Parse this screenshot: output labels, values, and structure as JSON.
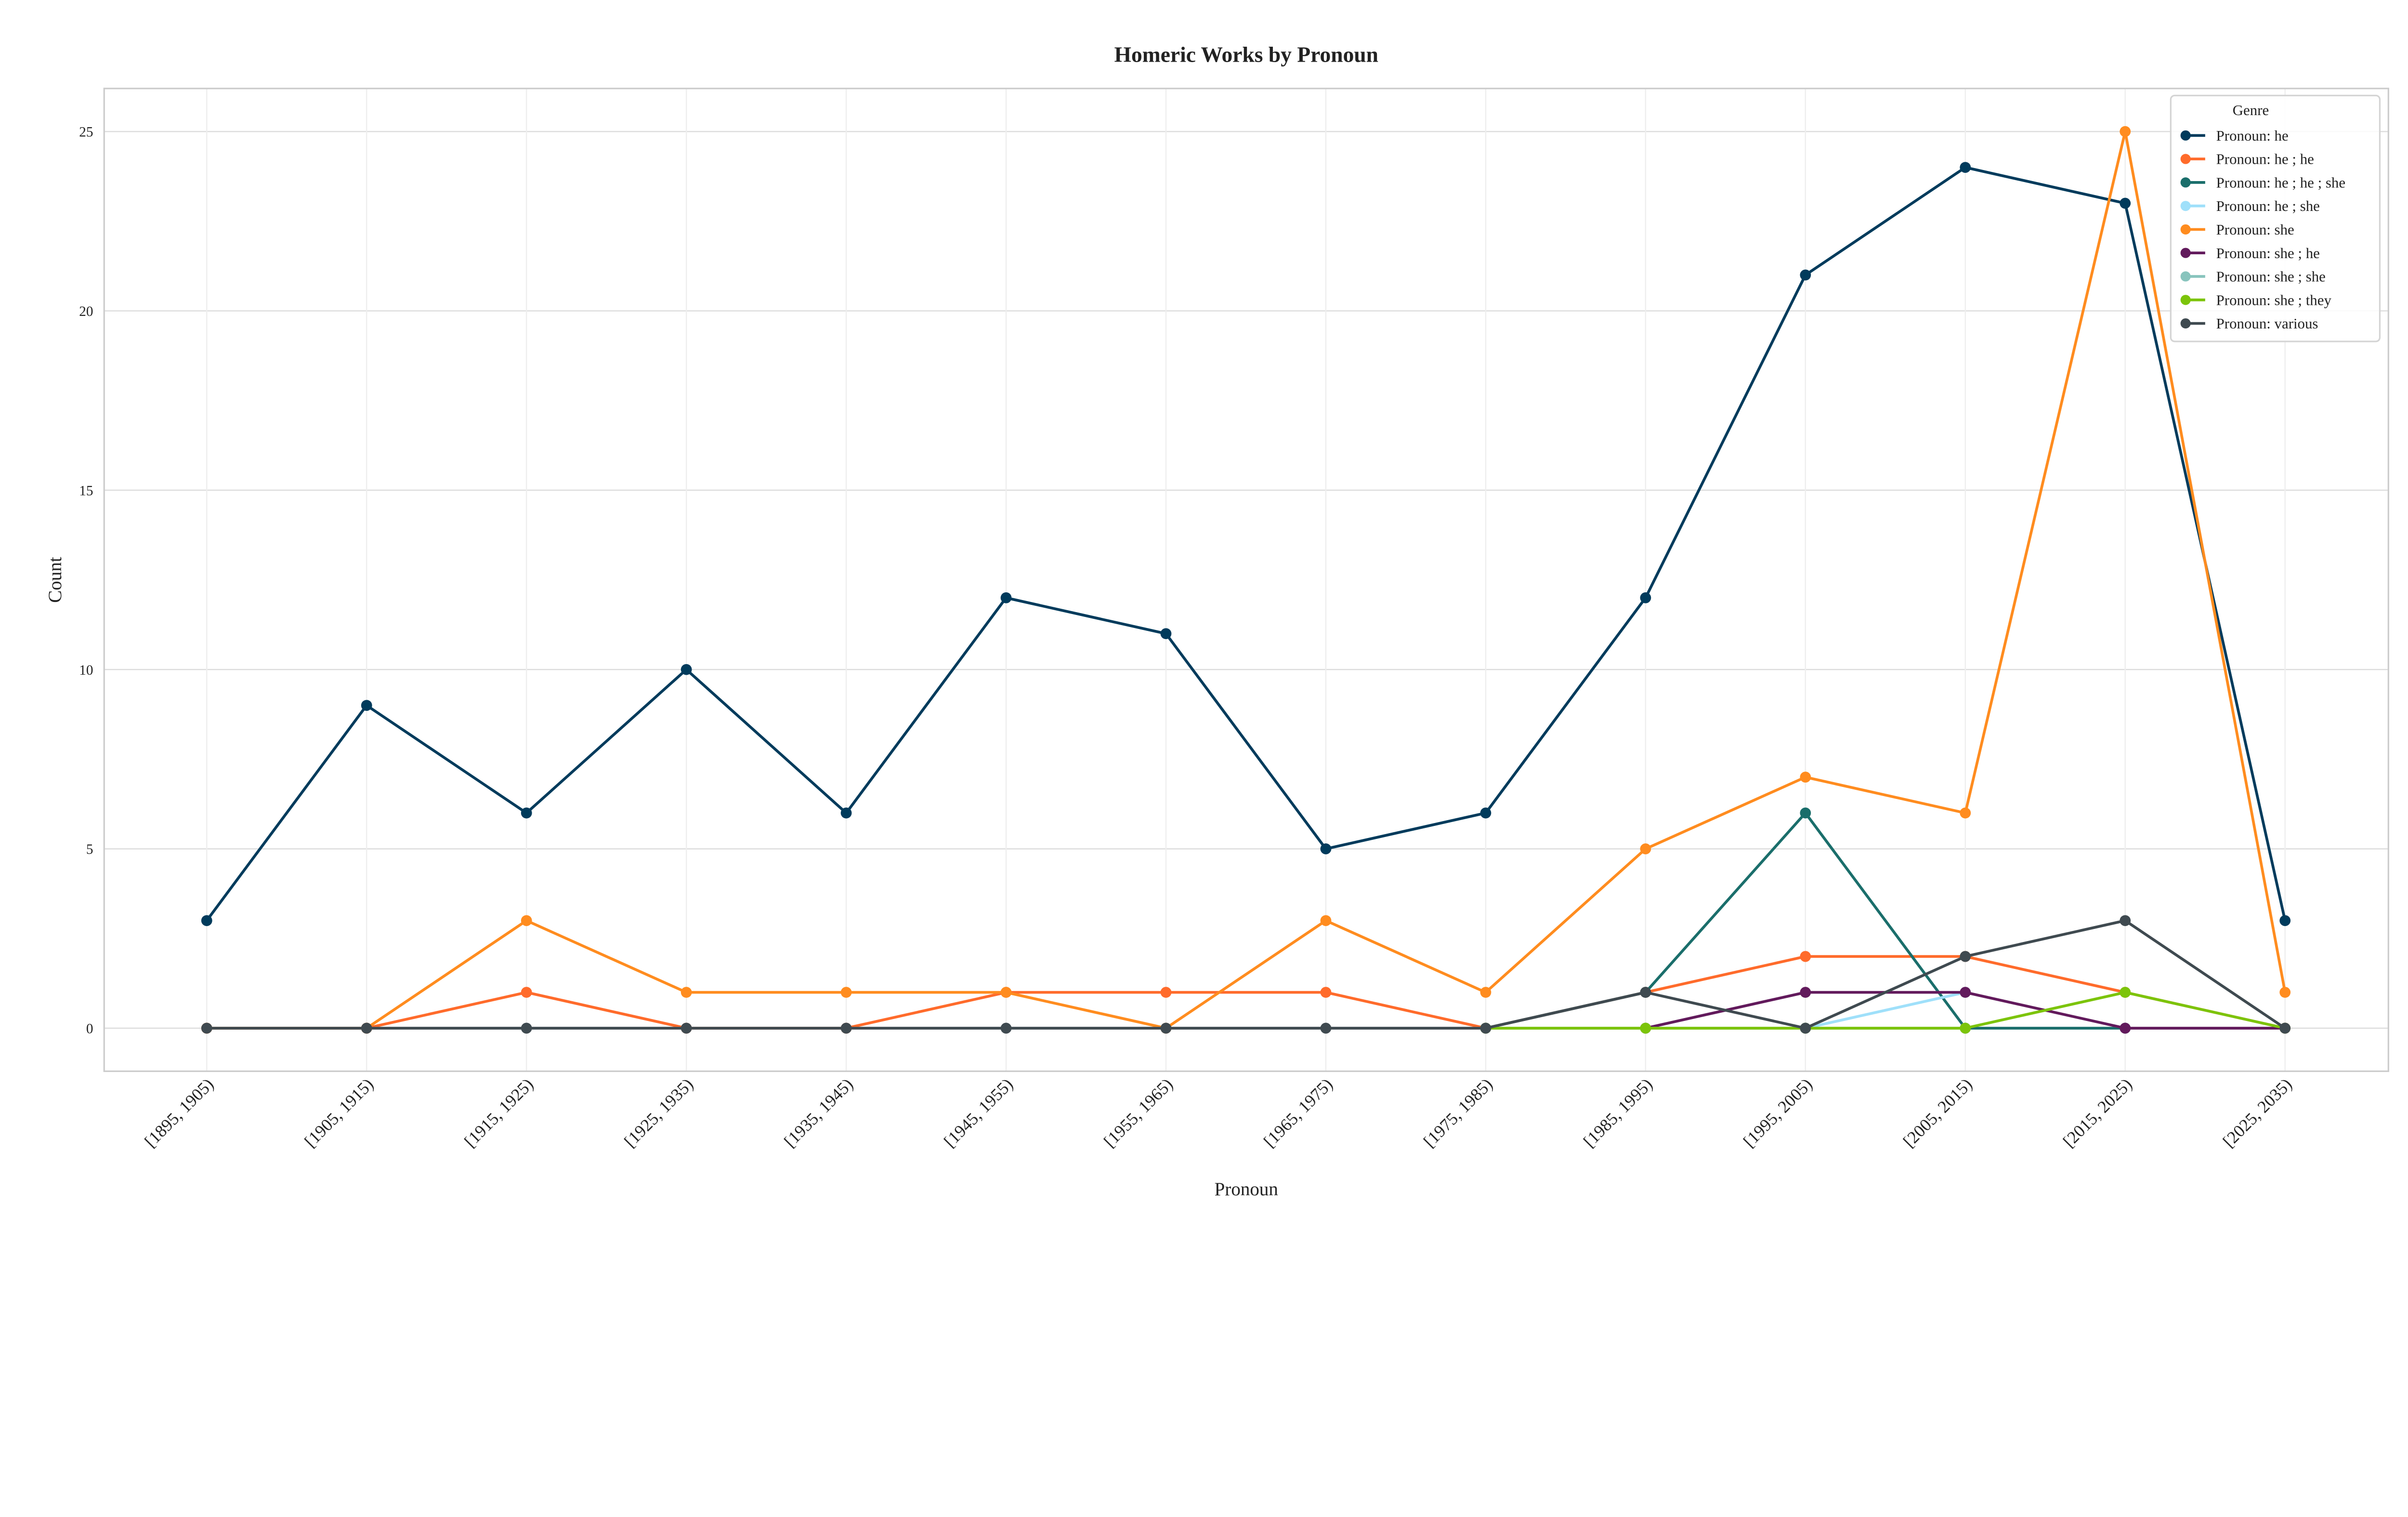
{
  "chart_data": {
    "type": "line",
    "title": "Homeric Works by Pronoun",
    "xlabel": "Pronoun",
    "ylabel": "Count",
    "ylim": [
      -1.2,
      26.2
    ],
    "yticks": [
      0,
      5,
      10,
      15,
      20,
      25
    ],
    "grid": true,
    "legend": {
      "title": "Genre",
      "placement": "top-right"
    },
    "categories": [
      "[1895, 1905)",
      "[1905, 1915)",
      "[1915, 1925)",
      "[1925, 1935)",
      "[1935, 1945)",
      "[1945, 1955)",
      "[1955, 1965)",
      "[1965, 1975)",
      "[1975, 1985)",
      "[1985, 1995)",
      "[1995, 2005)",
      "[2005, 2015)",
      "[2015, 2025)",
      "[2025, 2035)"
    ],
    "series": [
      {
        "name": "Pronoun: he",
        "color": "#003B5C",
        "values": [
          3,
          9,
          6,
          10,
          6,
          12,
          11,
          5,
          6,
          12,
          21,
          24,
          23,
          3
        ]
      },
      {
        "name": "Pronoun: he ; he",
        "color": "#FF6B2B",
        "values": [
          0,
          0,
          1,
          0,
          0,
          1,
          1,
          1,
          0,
          1,
          2,
          2,
          1,
          0
        ]
      },
      {
        "name": "Pronoun: he ; he ; she",
        "color": "#1A6E6B",
        "values": [
          null,
          null,
          null,
          null,
          null,
          null,
          null,
          null,
          0,
          1,
          6,
          0,
          0,
          null
        ]
      },
      {
        "name": "Pronoun: he ; she",
        "color": "#9FE0FA",
        "values": [
          null,
          null,
          null,
          null,
          null,
          null,
          null,
          null,
          null,
          null,
          0,
          1,
          null,
          null
        ]
      },
      {
        "name": "Pronoun: she",
        "color": "#FF8C1F",
        "values": [
          0,
          0,
          3,
          1,
          1,
          1,
          0,
          3,
          1,
          5,
          7,
          6,
          25,
          1
        ]
      },
      {
        "name": "Pronoun: she ; he",
        "color": "#621A5C",
        "values": [
          null,
          null,
          null,
          null,
          null,
          null,
          null,
          null,
          null,
          0,
          1,
          1,
          0,
          0
        ]
      },
      {
        "name": "Pronoun: she ; she",
        "color": "#88C4BD",
        "values": [
          null,
          null,
          null,
          null,
          null,
          null,
          null,
          null,
          0,
          0,
          0,
          0,
          null,
          null
        ]
      },
      {
        "name": "Pronoun: she ; they",
        "color": "#7CC40A",
        "values": [
          null,
          null,
          null,
          null,
          null,
          null,
          null,
          null,
          0,
          0,
          0,
          0,
          1,
          0
        ]
      },
      {
        "name": "Pronoun: various",
        "color": "#3F4A50",
        "values": [
          0,
          0,
          0,
          0,
          0,
          0,
          0,
          0,
          0,
          1,
          0,
          2,
          3,
          0
        ]
      }
    ]
  }
}
